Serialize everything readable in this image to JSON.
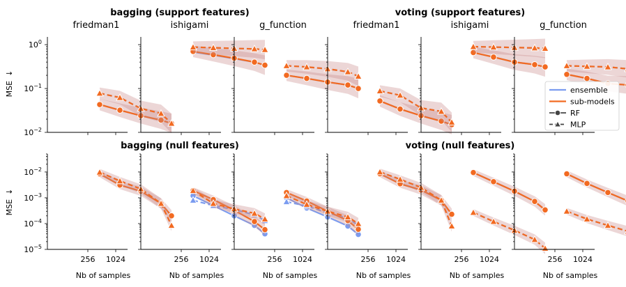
{
  "colors": {
    "ensemble": "#7b9cf0",
    "submodels": "#f26a21",
    "band": "#c98a8a"
  },
  "chart_data": {
    "type": "line",
    "x": [
      100,
      256,
      512,
      1024,
      2000
    ],
    "xticks": [
      256,
      1024
    ],
    "xlabel": "Nb of samples",
    "ylabel": "MSE",
    "ylabel_arrow": "↓",
    "rows": [
      {
        "ylim": [
          0.01,
          1.5
        ],
        "yticks": [
          {
            "value": 1,
            "label": "10",
            "exp": "0"
          },
          {
            "value": 0.1,
            "label": "10",
            "exp": "−1"
          },
          {
            "value": 0.01,
            "label": "10",
            "exp": "−2"
          }
        ]
      },
      {
        "ylim": [
          1e-05,
          0.05
        ],
        "yticks": [
          {
            "value": 0.01,
            "label": "10",
            "exp": "−2"
          },
          {
            "value": 0.001,
            "label": "10",
            "exp": "−3"
          },
          {
            "value": 0.0001,
            "label": "10",
            "exp": "−4"
          },
          {
            "value": 1e-05,
            "label": "10",
            "exp": "−5"
          }
        ]
      }
    ],
    "group_titles": [
      {
        "row": 0,
        "group": 0,
        "text": "bagging (support features)"
      },
      {
        "row": 0,
        "group": 1,
        "text": "voting (support features)"
      },
      {
        "row": 1,
        "group": 0,
        "text": "bagging (null features)"
      },
      {
        "row": 1,
        "group": 1,
        "text": "voting (null features)"
      }
    ],
    "panel_titles": [
      "friedman1",
      "ishigami",
      "g_function",
      "friedman1",
      "ishigami",
      "g_function"
    ],
    "legend": {
      "location": "right",
      "entries": [
        {
          "label": "ensemble",
          "kind": "line",
          "color": "ensemble"
        },
        {
          "label": "sub-models",
          "kind": "line",
          "color": "submodels"
        },
        {
          "label": "RF",
          "kind": "marker-circle"
        },
        {
          "label": "MLP",
          "kind": "marker-triangle"
        }
      ]
    },
    "panels": [
      {
        "row": 0,
        "col": 0,
        "series": [
          {
            "name": "ensemble RF",
            "model": "RF",
            "role": "ensemble",
            "values": [
              0.043,
              0.032,
              0.024,
              0.019,
              0.016
            ]
          },
          {
            "name": "sub-models RF",
            "model": "RF",
            "role": "sub-models",
            "values": [
              0.043,
              0.032,
              0.024,
              0.019,
              0.016
            ]
          },
          {
            "name": "ensemble MLP",
            "model": "MLP",
            "role": "ensemble",
            "values": [
              0.078,
              0.062,
              0.035,
              0.027,
              0.016
            ]
          },
          {
            "name": "sub-models MLP",
            "model": "MLP",
            "role": "sub-models",
            "values": [
              0.078,
              0.062,
              0.035,
              0.027,
              0.016
            ]
          }
        ]
      },
      {
        "row": 0,
        "col": 1,
        "series": [
          {
            "name": "ensemble RF",
            "model": "RF",
            "role": "ensemble",
            "values": [
              0.68,
              0.58,
              0.48,
              0.4,
              0.34
            ]
          },
          {
            "name": "sub-models RF",
            "model": "RF",
            "role": "sub-models",
            "values": [
              0.7,
              0.59,
              0.49,
              0.4,
              0.34
            ]
          },
          {
            "name": "ensemble MLP",
            "model": "MLP",
            "role": "ensemble",
            "values": [
              0.88,
              0.85,
              0.82,
              0.8,
              0.77
            ]
          },
          {
            "name": "sub-models MLP",
            "model": "MLP",
            "role": "sub-models",
            "values": [
              0.88,
              0.85,
              0.82,
              0.8,
              0.77
            ]
          }
        ]
      },
      {
        "row": 0,
        "col": 2,
        "series": [
          {
            "name": "ensemble RF",
            "model": "RF",
            "role": "ensemble",
            "values": [
              0.2,
              0.17,
              0.14,
              0.12,
              0.1
            ]
          },
          {
            "name": "sub-models RF",
            "model": "RF",
            "role": "sub-models",
            "values": [
              0.2,
              0.17,
              0.14,
              0.12,
              0.1
            ]
          },
          {
            "name": "ensemble MLP",
            "model": "MLP",
            "role": "ensemble",
            "values": [
              0.33,
              0.31,
              0.28,
              0.24,
              0.19
            ]
          },
          {
            "name": "sub-models MLP",
            "model": "MLP",
            "role": "sub-models",
            "values": [
              0.33,
              0.31,
              0.28,
              0.24,
              0.19
            ]
          }
        ]
      },
      {
        "row": 0,
        "col": 3,
        "series": [
          {
            "name": "ensemble RF",
            "model": "RF",
            "role": "ensemble",
            "values": [
              0.052,
              0.034,
              0.024,
              0.018,
              0.015
            ]
          },
          {
            "name": "sub-models RF",
            "model": "RF",
            "role": "sub-models",
            "values": [
              0.052,
              0.034,
              0.024,
              0.018,
              0.015
            ]
          },
          {
            "name": "ensemble MLP",
            "model": "MLP",
            "role": "ensemble",
            "values": [
              0.088,
              0.07,
              0.036,
              0.03,
              0.017
            ]
          },
          {
            "name": "sub-models MLP",
            "model": "MLP",
            "role": "sub-models",
            "values": [
              0.088,
              0.07,
              0.036,
              0.03,
              0.017
            ]
          }
        ]
      },
      {
        "row": 0,
        "col": 4,
        "series": [
          {
            "name": "ensemble RF",
            "model": "RF",
            "role": "ensemble",
            "values": [
              0.66,
              0.52,
              0.4,
              0.35,
              0.31
            ]
          },
          {
            "name": "sub-models RF",
            "model": "RF",
            "role": "sub-models",
            "values": [
              0.66,
              0.52,
              0.4,
              0.35,
              0.31
            ]
          },
          {
            "name": "ensemble MLP",
            "model": "MLP",
            "role": "ensemble",
            "values": [
              0.9,
              0.88,
              0.86,
              0.84,
              0.82
            ]
          },
          {
            "name": "sub-models MLP",
            "model": "MLP",
            "role": "sub-models",
            "values": [
              0.9,
              0.88,
              0.86,
              0.84,
              0.82
            ]
          }
        ]
      },
      {
        "row": 0,
        "col": 5,
        "series": [
          {
            "name": "ensemble RF",
            "model": "RF",
            "role": "ensemble",
            "values": [
              0.21,
              0.17,
              0.13,
              0.12,
              0.1
            ]
          },
          {
            "name": "sub-models RF",
            "model": "RF",
            "role": "sub-models",
            "values": [
              0.21,
              0.17,
              0.13,
              0.12,
              0.1
            ]
          },
          {
            "name": "ensemble MLP",
            "model": "MLP",
            "role": "ensemble",
            "values": [
              0.33,
              0.32,
              0.31,
              0.28,
              0.21
            ]
          },
          {
            "name": "sub-models MLP",
            "model": "MLP",
            "role": "sub-models",
            "values": [
              0.33,
              0.32,
              0.31,
              0.28,
              0.21
            ]
          }
        ]
      },
      {
        "row": 1,
        "col": 0,
        "series": [
          {
            "name": "ensemble RF",
            "model": "RF",
            "role": "ensemble",
            "values": [
              0.0085,
              0.0031,
              0.0018,
              0.0006,
              0.0002
            ]
          },
          {
            "name": "sub-models RF",
            "model": "RF",
            "role": "sub-models",
            "values": [
              0.0085,
              0.0031,
              0.0018,
              0.0006,
              0.0002
            ]
          },
          {
            "name": "ensemble MLP",
            "model": "MLP",
            "role": "ensemble",
            "values": [
              0.0098,
              0.0045,
              0.0022,
              0.0006,
              8.5e-05
            ]
          },
          {
            "name": "sub-models MLP",
            "model": "MLP",
            "role": "sub-models",
            "values": [
              0.0098,
              0.0045,
              0.0022,
              0.0006,
              8.5e-05
            ]
          }
        ]
      },
      {
        "row": 1,
        "col": 1,
        "series": [
          {
            "name": "ensemble RF",
            "model": "RF",
            "role": "ensemble",
            "values": [
              0.0012,
              0.0005,
              0.0002,
              8.5e-05,
              4e-05
            ]
          },
          {
            "name": "sub-models RF",
            "model": "RF",
            "role": "sub-models",
            "values": [
              0.0019,
              0.00085,
              0.00033,
              0.00012,
              5.8e-05
            ]
          },
          {
            "name": "ensemble MLP",
            "model": "MLP",
            "role": "ensemble",
            "values": [
              0.0008,
              0.0005,
              0.00035,
              0.00022,
              0.00013
            ]
          },
          {
            "name": "sub-models MLP",
            "model": "MLP",
            "role": "sub-models",
            "values": [
              0.0019,
              0.0006,
              0.00037,
              0.00025,
              0.00015
            ]
          }
        ]
      },
      {
        "row": 1,
        "col": 2,
        "series": [
          {
            "name": "ensemble RF",
            "model": "RF",
            "role": "ensemble",
            "values": [
              0.001,
              0.0004,
              0.00018,
              8e-05,
              3.8e-05
            ]
          },
          {
            "name": "sub-models RF",
            "model": "RF",
            "role": "sub-models",
            "values": [
              0.0016,
              0.00075,
              0.0003,
              0.00013,
              6e-05
            ]
          },
          {
            "name": "ensemble MLP",
            "model": "MLP",
            "role": "ensemble",
            "values": [
              0.0007,
              0.00048,
              0.00026,
              0.00016,
              8.5e-05
            ]
          },
          {
            "name": "sub-models MLP",
            "model": "MLP",
            "role": "sub-models",
            "values": [
              0.0012,
              0.00055,
              0.0003,
              0.00018,
              0.0001
            ]
          }
        ]
      },
      {
        "row": 1,
        "col": 3,
        "series": [
          {
            "name": "ensemble RF",
            "model": "RF",
            "role": "ensemble",
            "values": [
              0.0085,
              0.0035,
              0.002,
              0.0008,
              0.00023
            ]
          },
          {
            "name": "sub-models RF",
            "model": "RF",
            "role": "sub-models",
            "values": [
              0.0085,
              0.0035,
              0.002,
              0.0008,
              0.00023
            ]
          },
          {
            "name": "ensemble MLP",
            "model": "MLP",
            "role": "ensemble",
            "values": [
              0.01,
              0.0052,
              0.0025,
              0.0008,
              8e-05
            ]
          },
          {
            "name": "sub-models MLP",
            "model": "MLP",
            "role": "sub-models",
            "values": [
              0.01,
              0.0052,
              0.0025,
              0.0008,
              8e-05
            ]
          }
        ]
      },
      {
        "row": 1,
        "col": 4,
        "series": [
          {
            "name": "ensemble RF",
            "model": "RF",
            "role": "ensemble",
            "values": [
              0.0095,
              0.0042,
              0.0018,
              0.00072,
              0.00034
            ]
          },
          {
            "name": "sub-models RF",
            "model": "RF",
            "role": "sub-models",
            "values": [
              0.0095,
              0.0042,
              0.0018,
              0.00072,
              0.00034
            ]
          },
          {
            "name": "ensemble MLP",
            "model": "MLP",
            "role": "ensemble",
            "values": [
              0.00027,
              0.00012,
              5.5e-05,
              2.4e-05,
              1.1e-05
            ]
          },
          {
            "name": "sub-models MLP",
            "model": "MLP",
            "role": "sub-models",
            "values": [
              0.00027,
              0.00012,
              5.5e-05,
              2.4e-05,
              1.1e-05
            ]
          }
        ]
      },
      {
        "row": 1,
        "col": 5,
        "series": [
          {
            "name": "ensemble RF",
            "model": "RF",
            "role": "ensemble",
            "values": [
              0.0085,
              0.0036,
              0.0016,
              0.00075,
              0.00036
            ]
          },
          {
            "name": "sub-models RF",
            "model": "RF",
            "role": "sub-models",
            "values": [
              0.0085,
              0.0036,
              0.0016,
              0.00075,
              0.00036
            ]
          },
          {
            "name": "ensemble MLP",
            "model": "MLP",
            "role": "ensemble",
            "values": [
              0.0003,
              0.00015,
              8.5e-05,
              5e-05,
              3e-05
            ]
          },
          {
            "name": "sub-models MLP",
            "model": "MLP",
            "role": "sub-models",
            "values": [
              0.0003,
              0.00015,
              8.5e-05,
              5e-05,
              3e-05
            ]
          }
        ]
      }
    ]
  }
}
